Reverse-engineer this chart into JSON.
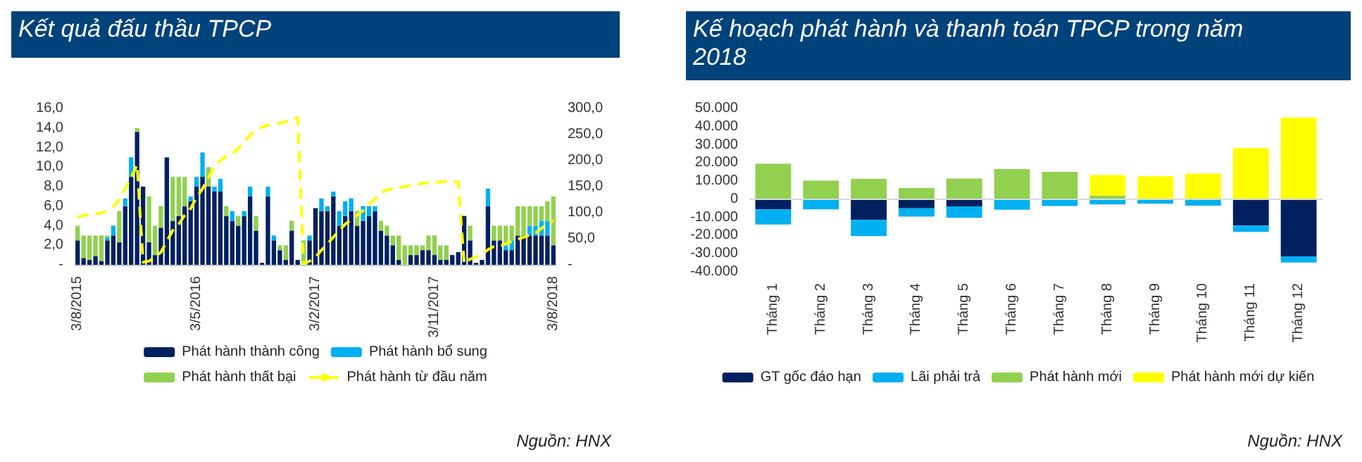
{
  "chart_data": [
    {
      "type": "bar",
      "title": "Kết quả đấu thầu TPCP",
      "stacked": true,
      "legend": "bottom",
      "grid": false,
      "categories": [
        "3/8/2015",
        null,
        null,
        null,
        null,
        null,
        null,
        null,
        null,
        null,
        null,
        null,
        null,
        null,
        null,
        null,
        null,
        null,
        null,
        null,
        "3/5/2016",
        null,
        null,
        null,
        null,
        null,
        null,
        null,
        null,
        null,
        null,
        null,
        null,
        null,
        null,
        null,
        null,
        null,
        null,
        null,
        "3/2/2017",
        null,
        null,
        null,
        null,
        null,
        null,
        null,
        null,
        null,
        null,
        null,
        null,
        null,
        null,
        null,
        null,
        null,
        null,
        null,
        "3/11/2017",
        null,
        null,
        null,
        null,
        null,
        null,
        null,
        null,
        null,
        null,
        null,
        null,
        null,
        null,
        null,
        null,
        null,
        null,
        null,
        "3/8/2018"
      ],
      "series": [
        {
          "name": "Phát hành thành công",
          "color": "#002060",
          "values": [
            2.5,
            0.7,
            0.5,
            0.9,
            0.4,
            2.5,
            3,
            2.3,
            6,
            9,
            13.6,
            8,
            2.3,
            1,
            3.8,
            11,
            4.5,
            5,
            6,
            6.5,
            8,
            9,
            8,
            7.5,
            7.5,
            5,
            4.5,
            4,
            5,
            7,
            3.5,
            0.2,
            7,
            2.5,
            1.5,
            0.5,
            3.5,
            0.5,
            null,
            2.5,
            5.8,
            5.5,
            5.5,
            7,
            4,
            5,
            5.5,
            4,
            4.5,
            5,
            5.5,
            3.5,
            3,
            2,
            0.5,
            0,
            1,
            1,
            1.5,
            1.5,
            1,
            0.5,
            0.5,
            1,
            1.3,
            5,
            2.5,
            0.2,
            0.5,
            6,
            2.5,
            2.5,
            1.5,
            1.5,
            3,
            3,
            3,
            3,
            3,
            3,
            2
          ]
        },
        {
          "name": "Phát hành bổ sung",
          "color": "#00b0f0",
          "values": [
            0,
            0,
            0,
            0,
            0,
            0.3,
            1,
            0,
            0.8,
            2,
            0,
            0,
            0,
            0,
            0,
            0,
            0,
            0,
            0,
            0.5,
            1,
            2.5,
            0,
            0.5,
            1.3,
            0,
            1,
            0,
            0.5,
            1,
            0,
            0,
            1,
            0.5,
            0,
            0,
            0,
            0,
            0,
            0.5,
            0,
            1.3,
            0.5,
            0.5,
            1.5,
            1.5,
            1.3,
            0,
            1.5,
            1,
            0.5,
            0,
            0,
            0,
            0,
            0,
            0,
            0,
            0,
            0,
            0,
            0,
            0,
            0,
            0,
            0,
            0,
            0,
            0,
            1.8,
            0,
            0,
            0.5,
            1,
            0,
            0,
            1,
            1,
            1.5,
            1.5,
            0
          ]
        },
        {
          "name": "Phát hành thất bại",
          "color": "#92d050",
          "values": [
            1.5,
            2.3,
            2.5,
            2.1,
            2.6,
            0.2,
            0,
            3.2,
            0,
            0,
            0.4,
            0,
            4.7,
            3,
            2.2,
            0,
            4.5,
            4,
            3,
            0,
            0,
            0,
            2,
            0,
            0,
            1,
            0,
            1,
            0,
            0,
            1.5,
            0,
            0,
            0,
            0.5,
            1.5,
            1,
            0,
            2.5,
            0,
            0,
            0,
            0,
            0,
            0,
            0,
            0,
            1.5,
            0,
            0,
            0,
            1,
            1,
            1,
            2.5,
            2,
            1,
            1,
            0.5,
            1.5,
            2,
            1.5,
            1.5,
            0,
            0,
            0,
            1.5,
            0,
            0,
            0,
            1.5,
            1.5,
            2,
            1.5,
            3,
            3,
            2,
            2,
            1.5,
            2,
            5
          ]
        },
        {
          "name": "Phát hành từ đầu năm",
          "type": "line",
          "axis": "y2",
          "color": "#ffff00",
          "line_style": "dashed",
          "marker": "none",
          "values": [
            91,
            95,
            97,
            98,
            99,
            105,
            112,
            125,
            146,
            167,
            192,
            5,
            7,
            15,
            24,
            45,
            66,
            78,
            95,
            108,
            129,
            146,
            167,
            188,
            200,
            209,
            213,
            223,
            234,
            249,
            259,
            264,
            268,
            270,
            272,
            274,
            281,
            282,
            2,
            7,
            15,
            28,
            40,
            53,
            66,
            78,
            87,
            95,
            104,
            116,
            127,
            137,
            144,
            146,
            148,
            150,
            152,
            154,
            156,
            158,
            158,
            159,
            160,
            161,
            159,
            2,
            11,
            15,
            21,
            29,
            35,
            36,
            40,
            45,
            49,
            53,
            57,
            61,
            70,
            78,
            85
          ]
        }
      ],
      "ylim": [
        0,
        16
      ],
      "yticks": [
        {
          "value": 0,
          "label": "-"
        },
        {
          "value": 2,
          "label": "2,0"
        },
        {
          "value": 4,
          "label": "4,0"
        },
        {
          "value": 6,
          "label": "6,0"
        },
        {
          "value": 8,
          "label": "8,0"
        },
        {
          "value": 10,
          "label": "10,0"
        },
        {
          "value": 12,
          "label": "12,0"
        },
        {
          "value": 14,
          "label": "14,0"
        },
        {
          "value": 16,
          "label": "16,0"
        }
      ],
      "y2lim": [
        0,
        300
      ],
      "y2ticks": [
        {
          "value": 0,
          "label": "-"
        },
        {
          "value": 50,
          "label": "50,0"
        },
        {
          "value": 100,
          "label": "100,0"
        },
        {
          "value": 150,
          "label": "150,0"
        },
        {
          "value": 200,
          "label": "200,0"
        },
        {
          "value": 250,
          "label": "250,0"
        },
        {
          "value": 300,
          "label": "300,0"
        }
      ],
      "annotations": [
        "Nguồn: HNX"
      ]
    },
    {
      "type": "bar",
      "title": "Kế hoạch phát hành và thanh toán TPCP trong năm 2018",
      "stacked": true,
      "legend": "bottom",
      "grid": false,
      "categories": [
        "Tháng 1",
        "Tháng 2",
        "Tháng 3",
        "Tháng 4",
        "Tháng 5",
        "Tháng 6",
        "Tháng 7",
        "Tháng 8",
        "Tháng 9",
        "Tháng 10",
        "Tháng 11",
        "Tháng 12"
      ],
      "series": [
        {
          "name": "GT gốc đáo hạn",
          "color": "#002060",
          "values": [
            -5600,
            0,
            -11400,
            -5000,
            -3900,
            0,
            0,
            0,
            0,
            0,
            -14500,
            -31500
          ]
        },
        {
          "name": "Lãi phải trả",
          "color": "#00b0f0",
          "values": [
            -8300,
            -5600,
            -8900,
            -4500,
            -6300,
            -5800,
            -3700,
            -2900,
            -2500,
            -3500,
            -3500,
            -3400
          ]
        },
        {
          "name": "Phát hành mới",
          "color": "#92d050",
          "values": [
            19500,
            10200,
            11200,
            6200,
            11400,
            16600,
            15100,
            1900,
            0,
            0,
            0,
            0
          ]
        },
        {
          "name": "Phát hành mới dự kiến",
          "color": "#ffff00",
          "values": [
            0,
            0,
            0,
            0,
            0,
            0,
            0,
            11400,
            12700,
            14100,
            28200,
            45000
          ]
        }
      ],
      "ref_lines": [
        {
          "axis": "y",
          "value": 0,
          "color": "#d9d9d9"
        }
      ],
      "ylim": [
        -40000,
        50000
      ],
      "yticks": [
        {
          "value": -40000,
          "label": "-40.000"
        },
        {
          "value": -30000,
          "label": "-30.000"
        },
        {
          "value": -20000,
          "label": "-20.000"
        },
        {
          "value": -10000,
          "label": "-10.000"
        },
        0,
        {
          "value": 10000,
          "label": "10.000"
        },
        {
          "value": 20000,
          "label": "20.000"
        },
        {
          "value": 30000,
          "label": "30.000"
        },
        {
          "value": 40000,
          "label": "40.000"
        },
        {
          "value": 50000,
          "label": "50.000"
        }
      ],
      "annotations": [
        "Nguồn: HNX"
      ]
    }
  ]
}
